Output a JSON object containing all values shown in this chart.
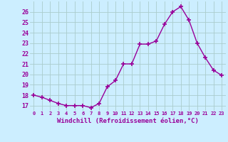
{
  "x": [
    0,
    1,
    2,
    3,
    4,
    5,
    6,
    7,
    8,
    9,
    10,
    11,
    12,
    13,
    14,
    15,
    16,
    17,
    18,
    19,
    20,
    21,
    22,
    23
  ],
  "y": [
    18.0,
    17.8,
    17.5,
    17.2,
    17.0,
    17.0,
    17.0,
    16.8,
    17.2,
    18.8,
    19.4,
    21.0,
    21.0,
    22.9,
    22.9,
    23.2,
    24.8,
    26.0,
    26.5,
    25.2,
    23.0,
    21.6,
    20.4,
    19.9
  ],
  "line_color": "#990099",
  "marker": "+",
  "marker_size": 4,
  "bg_color": "#cceeff",
  "grid_color": "#aacccc",
  "xlabel": "Windchill (Refroidissement éolien,°C)",
  "xlabel_color": "#990099",
  "tick_color": "#990099",
  "ylim": [
    16.5,
    27.0
  ],
  "xlim": [
    -0.5,
    23.5
  ],
  "yticks": [
    17,
    18,
    19,
    20,
    21,
    22,
    23,
    24,
    25,
    26
  ],
  "xticks": [
    0,
    1,
    2,
    3,
    4,
    5,
    6,
    7,
    8,
    9,
    10,
    11,
    12,
    13,
    14,
    15,
    16,
    17,
    18,
    19,
    20,
    21,
    22,
    23
  ],
  "xtick_labels": [
    "0",
    "1",
    "2",
    "3",
    "4",
    "5",
    "6",
    "7",
    "8",
    "9",
    "10",
    "11",
    "12",
    "13",
    "14",
    "15",
    "16",
    "17",
    "18",
    "19",
    "20",
    "21",
    "22",
    "23"
  ],
  "ytick_labels": [
    "17",
    "18",
    "19",
    "20",
    "21",
    "22",
    "23",
    "24",
    "25",
    "26"
  ]
}
